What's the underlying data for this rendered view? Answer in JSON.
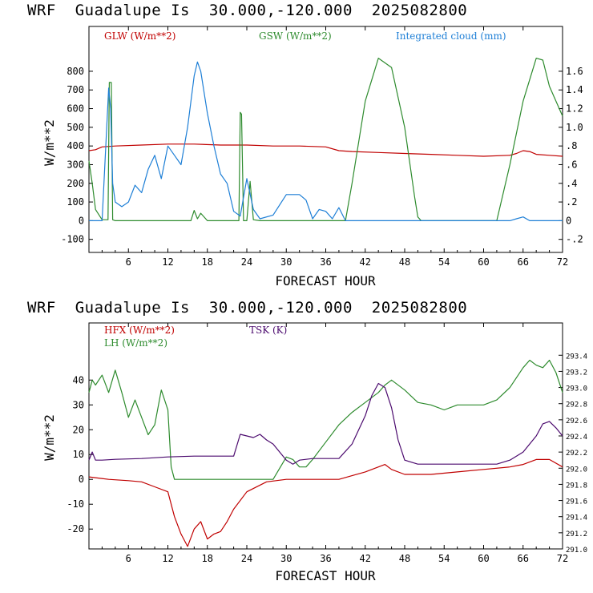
{
  "panel1": {
    "title": "WRF  Guadalupe Is  30.000,-120.000  2025082800",
    "xlabel": "FORECAST HOUR",
    "ylabel": "W/m**2",
    "legend": [
      {
        "label": "GLW (W/m**2)",
        "color": "#c00000"
      },
      {
        "label": "GSW (W/m**2)",
        "color": "#2e8b2e"
      },
      {
        "label": "Integrated cloud (mm)",
        "color": "#1e7fd6"
      }
    ]
  },
  "panel2": {
    "title": "WRF  Guadalupe Is  30.000,-120.000  2025082800",
    "xlabel": "FORECAST HOUR",
    "ylabel": "W/m**2",
    "legend": [
      {
        "label": "HFX (W/m**2)",
        "color": "#c00000"
      },
      {
        "label": "TSK (K)",
        "color": "#4b0a6e"
      },
      {
        "label": "LH  (W/m**2)",
        "color": "#2e8b2e"
      }
    ]
  },
  "chart_data": [
    {
      "type": "line",
      "title": "WRF  Guadalupe Is  30.000,-120.000  2025082800",
      "xlabel": "FORECAST HOUR",
      "ylabel": "W/m**2",
      "xlim": [
        0,
        72
      ],
      "ylim": [
        -170,
        1040
      ],
      "y2lim": [
        -0.34,
        2.08
      ],
      "xticks": [
        "6",
        "12",
        "18",
        "24",
        "30",
        "36",
        "42",
        "48",
        "54",
        "60",
        "66",
        "72"
      ],
      "yticks": [
        "-100",
        "0",
        "100",
        "200",
        "300",
        "400",
        "500",
        "600",
        "700",
        "800"
      ],
      "y2ticks": [
        "-.2",
        "0",
        ".2",
        ".4",
        ".6",
        ".8",
        "1.0",
        "1.2",
        "1.4",
        "1.6"
      ],
      "series": [
        {
          "name": "GLW (W/m**2)",
          "axis": "left",
          "color": "#c00000",
          "x": [
            0,
            1,
            2,
            4,
            8,
            12,
            16,
            20,
            24,
            28,
            32,
            36,
            38,
            40,
            44,
            48,
            52,
            56,
            60,
            64,
            65,
            66,
            67,
            68,
            70,
            72
          ],
          "y": [
            375,
            380,
            395,
            400,
            405,
            410,
            410,
            405,
            405,
            400,
            400,
            395,
            375,
            370,
            365,
            360,
            355,
            350,
            345,
            350,
            360,
            375,
            370,
            355,
            350,
            345
          ]
        },
        {
          "name": "GSW (W/m**2)",
          "axis": "left",
          "color": "#2e8b2e",
          "x": [
            0,
            0.5,
            1,
            2,
            2.9,
            3.1,
            3.4,
            3.6,
            4,
            10,
            15.5,
            16,
            16.5,
            17,
            18,
            22.8,
            23,
            23.2,
            23.5,
            24,
            24.5,
            25,
            26,
            39,
            40,
            42,
            44,
            46,
            48,
            49.5,
            50,
            50.5,
            62,
            64,
            66,
            68,
            69,
            70,
            72
          ],
          "y": [
            320,
            200,
            60,
            5,
            5,
            740,
            740,
            5,
            0,
            0,
            0,
            55,
            10,
            40,
            0,
            0,
            580,
            570,
            0,
            0,
            210,
            5,
            0,
            0,
            200,
            640,
            870,
            820,
            500,
            130,
            20,
            0,
            0,
            300,
            640,
            870,
            860,
            720,
            560
          ]
        },
        {
          "name": "Integrated cloud (mm)",
          "axis": "right",
          "color": "#1e7fd6",
          "x": [
            0,
            2,
            3,
            3.3,
            3.6,
            4,
            5,
            6,
            7,
            8,
            9,
            10,
            11,
            12,
            13,
            14,
            15,
            16,
            16.5,
            17,
            18,
            19,
            20,
            21,
            22,
            23,
            24,
            25,
            26,
            28,
            30,
            32,
            33,
            34,
            35,
            36,
            37,
            38,
            39,
            40,
            42,
            44,
            46,
            48,
            50,
            52,
            54,
            56,
            58,
            60,
            64,
            65,
            66,
            67,
            68,
            70,
            72
          ],
          "y": [
            0,
            0,
            1.42,
            1.2,
            0.4,
            0.2,
            0.15,
            0.2,
            0.38,
            0.3,
            0.55,
            0.7,
            0.45,
            0.8,
            0.7,
            0.6,
            1.0,
            1.55,
            1.7,
            1.6,
            1.15,
            0.8,
            0.5,
            0.4,
            0.1,
            0.05,
            0.45,
            0.12,
            0.02,
            0.06,
            0.28,
            0.28,
            0.22,
            0.02,
            0.12,
            0.1,
            0.02,
            0.14,
            0.0,
            0,
            0,
            0,
            0,
            0,
            0,
            0,
            0,
            0,
            0,
            0,
            0,
            0.02,
            0.04,
            0,
            0,
            0,
            0
          ]
        }
      ]
    },
    {
      "type": "line",
      "title": "WRF  Guadalupe Is  30.000,-120.000  2025082800",
      "xlabel": "FORECAST HOUR",
      "ylabel": "W/m**2",
      "xlim": [
        0,
        72
      ],
      "ylim": [
        -28,
        63
      ],
      "y2lim": [
        291.0,
        293.8
      ],
      "xticks": [
        "6",
        "12",
        "18",
        "24",
        "30",
        "36",
        "42",
        "48",
        "54",
        "60",
        "66",
        "72"
      ],
      "yticks": [
        "-20",
        "-10",
        "0",
        "10",
        "20",
        "30",
        "40"
      ],
      "y2ticks": [
        "291.0",
        "291.2",
        "291.4",
        "291.6",
        "291.8",
        "292.0",
        "292.2",
        "292.4",
        "292.6",
        "292.8",
        "293.0",
        "293.2",
        "293.4"
      ],
      "series": [
        {
          "name": "HFX (W/m**2)",
          "axis": "left",
          "color": "#c00000",
          "x": [
            0,
            3,
            6,
            8,
            10,
            12,
            13,
            14,
            15,
            16,
            17,
            18,
            19,
            20,
            21,
            22,
            24,
            27,
            30,
            34,
            38,
            40,
            42,
            44,
            45,
            46,
            48,
            52,
            56,
            60,
            64,
            66,
            68,
            70,
            72
          ],
          "y": [
            1,
            0,
            -0.5,
            -1,
            -3,
            -5,
            -15,
            -22,
            -27,
            -20,
            -17,
            -24,
            -22,
            -21,
            -17,
            -12,
            -5,
            -1,
            0,
            0,
            0,
            1.5,
            3,
            5,
            6,
            4,
            2,
            2,
            3,
            4,
            5,
            6,
            8,
            8,
            5
          ]
        },
        {
          "name": "LH  (W/m**2)",
          "axis": "left",
          "color": "#2e8b2e",
          "x": [
            0,
            0.5,
            1,
            2,
            3,
            4,
            5,
            6,
            7,
            8,
            9,
            10,
            11,
            12,
            12.5,
            13,
            20,
            25,
            28,
            30,
            31,
            32,
            33,
            34,
            36,
            38,
            40,
            42,
            44,
            45,
            46,
            48,
            50,
            52,
            54,
            56,
            58,
            60,
            62,
            64,
            66,
            67,
            68,
            69,
            70,
            71,
            72
          ],
          "y": [
            35,
            40,
            38,
            42,
            35,
            44,
            35,
            25,
            32,
            25,
            18,
            22,
            36,
            28,
            5,
            0,
            0,
            0,
            0,
            9,
            8,
            5,
            5,
            8,
            15,
            22,
            27,
            31,
            35,
            38,
            40,
            36,
            31,
            30,
            28,
            30,
            30,
            30,
            32,
            37,
            45,
            48,
            46,
            45,
            48,
            43,
            35
          ]
        },
        {
          "name": "TSK (K)",
          "axis": "right",
          "color": "#4b0a6e",
          "x": [
            0,
            0.5,
            1,
            2,
            4,
            8,
            12,
            16,
            20,
            22,
            23,
            24,
            25,
            26,
            27,
            28,
            29,
            30,
            31,
            32,
            34,
            36,
            38,
            40,
            42,
            43,
            44,
            45,
            46,
            47,
            48,
            50,
            52,
            56,
            60,
            62,
            64,
            66,
            68,
            69,
            70,
            71,
            72
          ],
          "y": [
            292.1,
            292.2,
            292.1,
            292.1,
            292.11,
            292.12,
            292.14,
            292.15,
            292.15,
            292.15,
            292.42,
            292.4,
            292.38,
            292.42,
            292.35,
            292.3,
            292.2,
            292.1,
            292.05,
            292.1,
            292.12,
            292.12,
            292.12,
            292.3,
            292.65,
            292.9,
            293.05,
            293.0,
            292.75,
            292.35,
            292.1,
            292.05,
            292.05,
            292.05,
            292.05,
            292.05,
            292.1,
            292.2,
            292.4,
            292.55,
            292.58,
            292.5,
            292.4
          ]
        }
      ]
    }
  ]
}
